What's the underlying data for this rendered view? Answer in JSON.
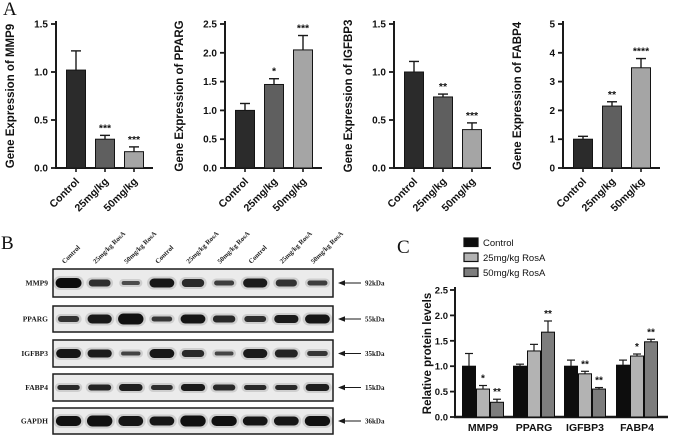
{
  "panels": {
    "a_label": "A",
    "b_label": "B",
    "c_label": "C"
  },
  "colors": {
    "panelA_bars": [
      "#2b2b2b",
      "#5f5f5f",
      "#a5a5a5"
    ],
    "panelC_bars": [
      "#0d0d0d",
      "#b3b3b3",
      "#7d7d7d"
    ],
    "axis": "#1a1a1a",
    "blot_bg": "#ebebeb",
    "band": "#0c0c0c"
  },
  "chart_data": [
    {
      "id": "mmp9",
      "type": "bar",
      "panel": "A",
      "ylabel": "Gene Expression of MMP9",
      "categories": [
        "Control",
        "25mg/kg",
        "50mg/kg"
      ],
      "values": [
        1.02,
        0.3,
        0.17
      ],
      "errors": [
        0.2,
        0.04,
        0.05
      ],
      "sig": [
        "",
        "***",
        "***"
      ],
      "ylim": [
        0,
        1.5
      ],
      "yticks": [
        0,
        0.5,
        1.0,
        1.5
      ],
      "ytick_labels": [
        "0.0",
        "0.5",
        "1.0",
        "1.5"
      ],
      "grid": false,
      "legend": false
    },
    {
      "id": "pparg",
      "type": "bar",
      "panel": "A",
      "ylabel": "Gene Expression of PPARG",
      "categories": [
        "Control",
        "25mg/kg",
        "50mg/kg"
      ],
      "values": [
        1.0,
        1.45,
        2.05
      ],
      "errors": [
        0.12,
        0.1,
        0.25
      ],
      "sig": [
        "",
        "*",
        "***"
      ],
      "ylim": [
        0,
        2.5
      ],
      "yticks": [
        0,
        0.5,
        1.0,
        1.5,
        2.0,
        2.5
      ],
      "ytick_labels": [
        "0.0",
        "0.5",
        "1.0",
        "1.5",
        "2.0",
        "2.5"
      ],
      "grid": false,
      "legend": false
    },
    {
      "id": "igfbp3",
      "type": "bar",
      "panel": "A",
      "ylabel": "Gene Expression of IGFBP3",
      "categories": [
        "Control",
        "25mg/kg",
        "50mg/kg"
      ],
      "values": [
        1.0,
        0.74,
        0.4
      ],
      "errors": [
        0.11,
        0.03,
        0.07
      ],
      "sig": [
        "",
        "**",
        "***"
      ],
      "ylim": [
        0,
        1.5
      ],
      "yticks": [
        0,
        0.5,
        1.0,
        1.5
      ],
      "ytick_labels": [
        "0.0",
        "0.5",
        "1.0",
        "1.5"
      ],
      "grid": false,
      "legend": false
    },
    {
      "id": "fabp4",
      "type": "bar",
      "panel": "A",
      "ylabel": "Gene Expression of FABP4",
      "categories": [
        "Control",
        "25mg/kg",
        "50mg/kg"
      ],
      "values": [
        1.0,
        2.15,
        3.48
      ],
      "errors": [
        0.1,
        0.15,
        0.32
      ],
      "sig": [
        "",
        "**",
        "****"
      ],
      "ylim": [
        0,
        5
      ],
      "yticks": [
        0,
        1,
        2,
        3,
        4,
        5
      ],
      "ytick_labels": [
        "0",
        "1",
        "2",
        "3",
        "4",
        "5"
      ],
      "grid": false,
      "legend": false
    },
    {
      "id": "protein_levels",
      "type": "grouped_bar",
      "panel": "C",
      "ylabel": "Relative protein levels",
      "categories": [
        "MMP9",
        "PPARG",
        "IGFBP3",
        "FABP4"
      ],
      "series": [
        {
          "name": "Control",
          "values": [
            1.0,
            1.0,
            1.0,
            1.02
          ],
          "errors": [
            0.25,
            0.04,
            0.12,
            0.1
          ],
          "sig": [
            "",
            "",
            "",
            ""
          ]
        },
        {
          "name": "25mg/kg RosA",
          "values": [
            0.55,
            1.3,
            0.85,
            1.2
          ],
          "errors": [
            0.07,
            0.13,
            0.05,
            0.04
          ],
          "sig": [
            "*",
            "",
            "**",
            "*"
          ]
        },
        {
          "name": "50mg/kg RosA",
          "values": [
            0.29,
            1.67,
            0.55,
            1.48
          ],
          "errors": [
            0.06,
            0.22,
            0.03,
            0.05
          ],
          "sig": [
            "**",
            "**",
            "**",
            "**"
          ]
        }
      ],
      "ylim": [
        0,
        2.5
      ],
      "yticks": [
        0,
        0.5,
        1.0,
        1.5,
        2.0,
        2.5
      ],
      "ytick_labels": [
        "0.0",
        "0.5",
        "1.0",
        "1.5",
        "2.0",
        "2.5"
      ],
      "grid": false,
      "legend_position": "top"
    }
  ],
  "western_blot": {
    "lane_labels": [
      "Control",
      "25mg/kg RosA",
      "50mg/kg RosA",
      "Control",
      "25mg/kg RosA",
      "50mg/kg RosA",
      "Control",
      "25mg/kg RosA",
      "50mg/kg RosA"
    ],
    "rows": [
      {
        "label": "MMP9",
        "kda": "92kDa",
        "intensities": [
          1.0,
          0.65,
          0.35,
          0.9,
          0.7,
          0.5,
          0.85,
          0.6,
          0.5
        ],
        "band_heights": [
          10,
          7,
          4,
          9,
          8,
          5,
          9,
          7,
          5
        ]
      },
      {
        "label": "PPARG",
        "kda": "55kDa",
        "intensities": [
          0.6,
          0.85,
          0.95,
          0.55,
          0.9,
          0.7,
          0.65,
          0.85,
          0.9
        ],
        "band_heights": [
          6,
          9,
          11,
          5,
          9,
          7,
          6,
          8,
          9
        ]
      },
      {
        "label": "IGFBP3",
        "kda": "35kDa",
        "intensities": [
          0.9,
          0.85,
          0.45,
          0.9,
          0.7,
          0.4,
          0.85,
          0.75,
          0.55
        ],
        "band_heights": [
          9,
          8,
          4,
          9,
          7,
          4,
          9,
          8,
          5
        ]
      },
      {
        "label": "FABP4",
        "kda": "15kDa",
        "intensities": [
          0.7,
          0.75,
          0.8,
          0.65,
          0.85,
          0.7,
          0.7,
          0.7,
          0.8
        ],
        "band_heights": [
          5,
          6,
          7,
          5,
          7,
          6,
          5,
          5,
          7
        ]
      },
      {
        "label": "GAPDH",
        "kda": "36kDa",
        "intensities": [
          0.95,
          0.95,
          0.9,
          0.9,
          0.95,
          0.95,
          0.9,
          0.9,
          0.95
        ],
        "band_heights": [
          10,
          11,
          10,
          9,
          11,
          10,
          9,
          9,
          10
        ]
      }
    ]
  }
}
